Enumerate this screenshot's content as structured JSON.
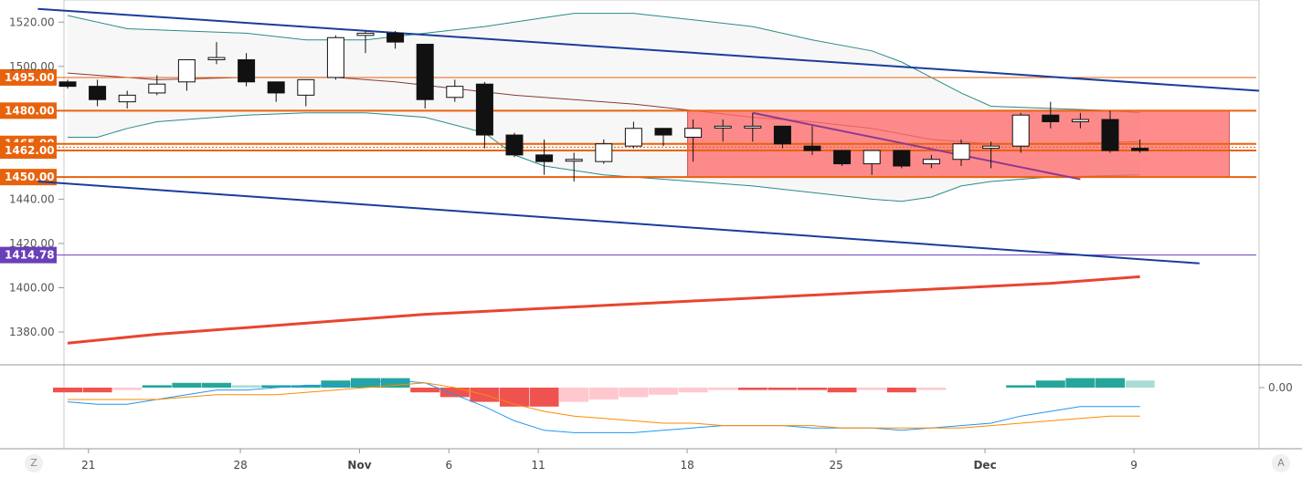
{
  "chart_data": {
    "type": "candlestick",
    "y_axis": {
      "range": [
        1366,
        1530
      ],
      "tick_labels": [
        "1520.00",
        "1500.00",
        "1440.00",
        "1420.00",
        "1400.00",
        "1380.00"
      ],
      "tick_values": [
        1520,
        1500,
        1440,
        1420,
        1400,
        1380
      ]
    },
    "x_axis": {
      "tick_labels": [
        "21",
        "28",
        "Nov",
        "6",
        "11",
        "18",
        "25",
        "Dec",
        "9"
      ]
    },
    "price_levels": [
      {
        "label": "1495.00",
        "value": 1495,
        "color": "#e8620c"
      },
      {
        "label": "1480.00",
        "value": 1480,
        "color": "#e8620c"
      },
      {
        "label": "1465.00",
        "value": 1465,
        "color": "#e8620c"
      },
      {
        "label": "1462.00",
        "value": 1462,
        "color": "#e8620c"
      },
      {
        "label": "1450.00",
        "value": 1450,
        "color": "#e8620c"
      },
      {
        "label": "1414.78",
        "value": 1414.78,
        "color": "#6a3fb8"
      }
    ],
    "candles": [
      {
        "o": 1493,
        "c": 1491,
        "h": 1494,
        "l": 1490
      },
      {
        "o": 1491,
        "c": 1485,
        "h": 1494,
        "l": 1482
      },
      {
        "o": 1484,
        "c": 1487,
        "h": 1489,
        "l": 1481
      },
      {
        "o": 1488,
        "c": 1492,
        "h": 1496,
        "l": 1487
      },
      {
        "o": 1493,
        "c": 1503,
        "h": 1503,
        "l": 1489
      },
      {
        "o": 1503,
        "c": 1504,
        "h": 1511,
        "l": 1501
      },
      {
        "o": 1503,
        "c": 1493,
        "h": 1506,
        "l": 1491
      },
      {
        "o": 1493,
        "c": 1488,
        "h": 1493,
        "l": 1484
      },
      {
        "o": 1487,
        "c": 1494,
        "h": 1494,
        "l": 1482
      },
      {
        "o": 1495,
        "c": 1513,
        "h": 1514,
        "l": 1494
      },
      {
        "o": 1514,
        "c": 1515,
        "h": 1516,
        "l": 1506
      },
      {
        "o": 1515,
        "c": 1511,
        "h": 1516,
        "l": 1508
      },
      {
        "o": 1510,
        "c": 1485,
        "h": 1510,
        "l": 1481
      },
      {
        "o": 1486,
        "c": 1491,
        "h": 1494,
        "l": 1484
      },
      {
        "o": 1492,
        "c": 1469,
        "h": 1493,
        "l": 1463
      },
      {
        "o": 1469,
        "c": 1460,
        "h": 1470,
        "l": 1459
      },
      {
        "o": 1460,
        "c": 1457,
        "h": 1467,
        "l": 1451
      },
      {
        "o": 1458,
        "c": 1458,
        "h": 1461,
        "l": 1448
      },
      {
        "o": 1457,
        "c": 1465,
        "h": 1467,
        "l": 1456
      },
      {
        "o": 1464,
        "c": 1472,
        "h": 1475,
        "l": 1463
      },
      {
        "o": 1472,
        "c": 1469,
        "h": 1472,
        "l": 1464
      },
      {
        "o": 1468,
        "c": 1472,
        "h": 1476,
        "l": 1457
      },
      {
        "o": 1473,
        "c": 1473,
        "h": 1476,
        "l": 1466
      },
      {
        "o": 1473,
        "c": 1473,
        "h": 1479,
        "l": 1466
      },
      {
        "o": 1473,
        "c": 1465,
        "h": 1473,
        "l": 1463
      },
      {
        "o": 1464,
        "c": 1462,
        "h": 1473,
        "l": 1460
      },
      {
        "o": 1462,
        "c": 1456,
        "h": 1462,
        "l": 1455
      },
      {
        "o": 1456,
        "c": 1462,
        "h": 1462,
        "l": 1451
      },
      {
        "o": 1462,
        "c": 1455,
        "h": 1462,
        "l": 1454
      },
      {
        "o": 1456,
        "c": 1458,
        "h": 1460,
        "l": 1454
      },
      {
        "o": 1458,
        "c": 1465,
        "h": 1467,
        "l": 1455
      },
      {
        "o": 1463,
        "c": 1464,
        "h": 1466,
        "l": 1454
      },
      {
        "o": 1464,
        "c": 1478,
        "h": 1479,
        "l": 1461
      },
      {
        "o": 1478,
        "c": 1475,
        "h": 1484,
        "l": 1472
      },
      {
        "o": 1475,
        "c": 1476,
        "h": 1479,
        "l": 1472
      },
      {
        "o": 1476,
        "c": 1462,
        "h": 1480,
        "l": 1461
      },
      {
        "o": 1463,
        "c": 1462,
        "h": 1467,
        "l": 1461
      }
    ],
    "indicators": {
      "bollinger_upper": [
        [
          0,
          1523
        ],
        [
          2,
          1517
        ],
        [
          4,
          1516
        ],
        [
          6,
          1515
        ],
        [
          8,
          1512
        ],
        [
          10,
          1512
        ],
        [
          12,
          1515
        ],
        [
          14,
          1518
        ],
        [
          16,
          1522
        ],
        [
          17,
          1524
        ],
        [
          19,
          1524
        ],
        [
          21,
          1521
        ],
        [
          23,
          1518
        ],
        [
          25,
          1512
        ],
        [
          27,
          1507
        ],
        [
          28,
          1502
        ],
        [
          30,
          1488
        ],
        [
          31,
          1482
        ],
        [
          33,
          1481
        ],
        [
          35,
          1480
        ],
        [
          36,
          1479
        ]
      ],
      "bollinger_middle": [
        [
          0,
          1497
        ],
        [
          3,
          1494
        ],
        [
          6,
          1495
        ],
        [
          9,
          1495
        ],
        [
          11,
          1493
        ],
        [
          13,
          1490
        ],
        [
          15,
          1487
        ],
        [
          17,
          1485
        ],
        [
          19,
          1483
        ],
        [
          21,
          1480
        ],
        [
          23,
          1477
        ],
        [
          25,
          1475
        ],
        [
          27,
          1472
        ],
        [
          29,
          1467
        ],
        [
          31,
          1465
        ],
        [
          33,
          1465
        ],
        [
          36,
          1466
        ]
      ],
      "bollinger_lower": [
        [
          0,
          1468
        ],
        [
          1,
          1468
        ],
        [
          2,
          1472
        ],
        [
          3,
          1475
        ],
        [
          4,
          1476
        ],
        [
          6,
          1478
        ],
        [
          8,
          1479
        ],
        [
          10,
          1479
        ],
        [
          12,
          1477
        ],
        [
          14,
          1470
        ],
        [
          15,
          1460
        ],
        [
          16,
          1455
        ],
        [
          18,
          1451
        ],
        [
          19,
          1450
        ],
        [
          21,
          1448
        ],
        [
          23,
          1446
        ],
        [
          25,
          1443
        ],
        [
          27,
          1440
        ],
        [
          28,
          1439
        ],
        [
          29,
          1441
        ],
        [
          30,
          1446
        ],
        [
          31,
          1448
        ],
        [
          33,
          1450
        ],
        [
          36,
          1451
        ]
      ],
      "moving_average_200": [
        [
          0,
          1375
        ],
        [
          3,
          1379
        ],
        [
          6,
          1382
        ],
        [
          9,
          1385
        ],
        [
          12,
          1388
        ],
        [
          15,
          1390
        ],
        [
          18,
          1392
        ],
        [
          21,
          1394
        ],
        [
          24,
          1396
        ],
        [
          27,
          1398
        ],
        [
          30,
          1400
        ],
        [
          33,
          1402
        ],
        [
          36,
          1405
        ]
      ]
    },
    "rectangle_zone": {
      "top": 1480,
      "bottom": 1450,
      "start_index": 21,
      "end_index": 39
    },
    "trendlines": {
      "channel_upper": [
        [
          -1,
          1526
        ],
        [
          40,
          1489
        ]
      ],
      "channel_lower": [
        [
          -1,
          1448
        ],
        [
          38,
          1411
        ]
      ],
      "purple_segment": [
        [
          23,
          1479
        ],
        [
          34,
          1449
        ]
      ]
    },
    "macd": {
      "zero_label": "0.00",
      "histogram": [
        -2,
        -2,
        -1,
        1,
        2,
        2,
        1,
        1,
        1,
        3,
        4,
        4,
        -2,
        -4,
        -6,
        -8,
        -8,
        -6,
        -5,
        -4,
        -3,
        -2,
        -1,
        -1,
        -1,
        -1,
        -2,
        -1,
        -2,
        -1,
        null,
        null,
        1,
        3,
        4,
        4,
        3
      ],
      "macd_line": [
        -6,
        -7,
        -7,
        -5,
        -3,
        -1,
        -1,
        0,
        1,
        1,
        2,
        3,
        2,
        -3,
        -8,
        -14,
        -18,
        -19,
        -19,
        -19,
        -18,
        -17,
        -16,
        -16,
        -16,
        -17,
        -17,
        -17,
        -18,
        -17,
        -16,
        -15,
        -12,
        -10,
        -8,
        -8,
        -8
      ],
      "signal_line": [
        -5,
        -5,
        -5,
        -5,
        -4,
        -3,
        -3,
        -3,
        -2,
        -1,
        0,
        1,
        2,
        0,
        -3,
        -7,
        -10,
        -12,
        -13,
        -14,
        -15,
        -15,
        -16,
        -16,
        -16,
        -16,
        -17,
        -17,
        -17,
        -17,
        -17,
        -16,
        -15,
        -14,
        -13,
        -12,
        -12
      ]
    }
  },
  "ui": {
    "left_corner": "Z",
    "right_corner": "A"
  }
}
